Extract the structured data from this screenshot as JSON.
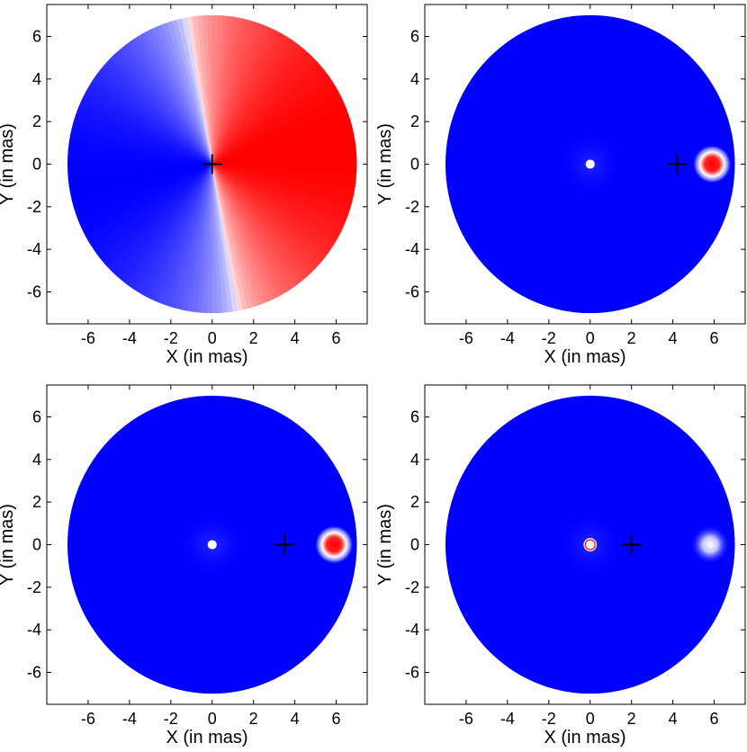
{
  "figure": {
    "xlabel": "X (in mas)",
    "ylabel": "Y (in mas)",
    "xlim": [
      -8,
      7.5
    ],
    "ylim": [
      -7.5,
      7.5
    ],
    "xticks": [
      -6,
      -4,
      -2,
      0,
      2,
      4,
      6
    ],
    "yticks": [
      -6,
      -4,
      -2,
      0,
      2,
      4,
      6
    ],
    "colors": {
      "negative": "#0000ff",
      "zero": "#ffffff",
      "positive": "#ff0000",
      "marker": "#000000"
    }
  },
  "chart_data": [
    {
      "type": "heatmap",
      "xlabel": "X (in mas)",
      "ylabel": "Y (in mas)",
      "xlim": [
        -8,
        7.5
      ],
      "ylim": [
        -7.5,
        7.5
      ],
      "xticks": [
        -6,
        -4,
        -2,
        0,
        2,
        4,
        6
      ],
      "yticks": [
        -6,
        -4,
        -2,
        0,
        2,
        4,
        6
      ],
      "disk_radius": 7,
      "field": "dipole",
      "dipole_axis_angle_deg": 10,
      "plus_marker": [
        0,
        0
      ],
      "colormap": [
        "#0000ff",
        "#ffffff",
        "#ff0000"
      ]
    },
    {
      "type": "heatmap",
      "xlabel": "X (in mas)",
      "ylabel": "Y (in mas)",
      "xlim": [
        -8,
        7.5
      ],
      "ylim": [
        -7.5,
        7.5
      ],
      "xticks": [
        -6,
        -4,
        -2,
        0,
        2,
        4,
        6
      ],
      "yticks": [
        -6,
        -4,
        -2,
        0,
        2,
        4,
        6
      ],
      "disk_radius": 7,
      "field": "spots",
      "center_spot": [
        0,
        0
      ],
      "bright_spot": [
        5.9,
        0
      ],
      "bright_spot_intensity": 1.0,
      "plus_marker": [
        4.2,
        0
      ],
      "colormap": [
        "#0000ff",
        "#ffffff",
        "#ff0000"
      ]
    },
    {
      "type": "heatmap",
      "xlabel": "X (in mas)",
      "ylabel": "Y (in mas)",
      "xlim": [
        -8,
        7.5
      ],
      "ylim": [
        -7.5,
        7.5
      ],
      "xticks": [
        -6,
        -4,
        -2,
        0,
        2,
        4,
        6
      ],
      "yticks": [
        -6,
        -4,
        -2,
        0,
        2,
        4,
        6
      ],
      "disk_radius": 7,
      "field": "spots",
      "center_spot": [
        0,
        0
      ],
      "bright_spot": [
        5.9,
        0
      ],
      "bright_spot_intensity": 1.0,
      "plus_marker": [
        3.5,
        0
      ],
      "colormap": [
        "#0000ff",
        "#ffffff",
        "#ff0000"
      ]
    },
    {
      "type": "heatmap",
      "xlabel": "X (in mas)",
      "ylabel": "Y (in mas)",
      "xlim": [
        -8,
        7.5
      ],
      "ylim": [
        -7.5,
        7.5
      ],
      "xticks": [
        -6,
        -4,
        -2,
        0,
        2,
        4,
        6
      ],
      "yticks": [
        -6,
        -4,
        -2,
        0,
        2,
        4,
        6
      ],
      "disk_radius": 7,
      "field": "spots",
      "center_spot": [
        0,
        0
      ],
      "center_ring": true,
      "bright_spot": [
        5.8,
        0
      ],
      "bright_spot_intensity": 0.35,
      "plus_marker": [
        2.0,
        0
      ],
      "colormap": [
        "#0000ff",
        "#ffffff",
        "#ff0000"
      ]
    }
  ]
}
